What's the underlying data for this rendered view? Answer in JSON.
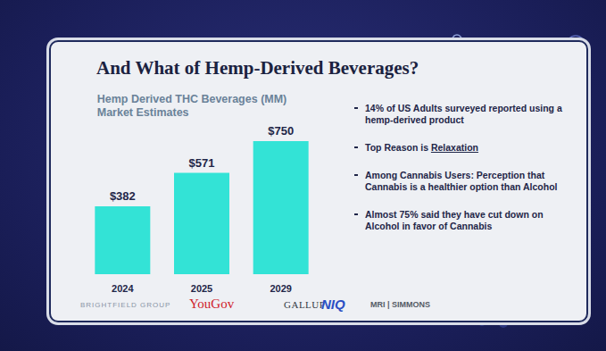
{
  "chart_data": {
    "type": "bar",
    "title": "Hemp Derived THC Beverages (MM)\nMarket Estimates",
    "categories": [
      "2024",
      "2025",
      "2029"
    ],
    "values": [
      382,
      571,
      750
    ],
    "value_labels": [
      "$382",
      "$571",
      "$750"
    ],
    "data_labels": true,
    "color": "#33e3d6",
    "ylim": [
      0,
      750
    ],
    "grid": false,
    "tick_labels": "x"
  },
  "slide": {
    "heading": "And What of Hemp-Derived Beverages?",
    "bullets": [
      [
        {
          "text": "14% of US Adults surveyed reported using a hemp-derived product"
        }
      ],
      [
        {
          "text": "Top Reason is "
        },
        {
          "text": "Relaxation",
          "underline": true
        }
      ],
      [
        {
          "text": "Among Cannabis Users: Perception that  Cannabis is a healthier option than Alcohol"
        }
      ],
      [
        {
          "text": "Almost 75% said they have cut down on Alcohol in favor of Cannabis"
        }
      ]
    ],
    "sources": [
      "BRIGHTFIELD GROUP",
      "YouGov",
      "GALLUP",
      "NIQ",
      "MRI | SIMMONS"
    ]
  }
}
